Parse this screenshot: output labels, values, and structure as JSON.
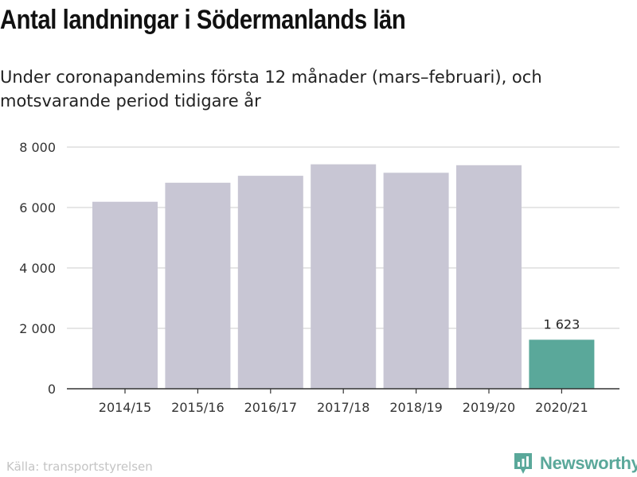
{
  "title": "Antal landningar i Södermanlands län",
  "subtitle": "Under coronapandemins första 12 månader (mars–februari), och motsvarande period tidigare år",
  "source": "Källa: transportstyrelsen",
  "brand": {
    "name": "Newsworthy",
    "icon": "newsworthy-logo-icon",
    "color": "#5aa89a"
  },
  "chart_data": {
    "type": "bar",
    "categories": [
      "2014/15",
      "2015/16",
      "2016/17",
      "2017/18",
      "2018/19",
      "2019/20",
      "2020/21"
    ],
    "values": [
      6190,
      6820,
      7050,
      7430,
      7150,
      7400,
      1623
    ],
    "data_labels": [
      "",
      "",
      "",
      "",
      "",
      "",
      "1 623"
    ],
    "colors": {
      "default": "#c8c6d4",
      "highlight": "#5aa89a"
    },
    "highlight_index": 6,
    "ylim": [
      0,
      8000
    ],
    "yticks": [
      0,
      2000,
      4000,
      6000,
      8000
    ],
    "ytick_labels": [
      "0",
      "2 000",
      "4 000",
      "6 000",
      "8 000"
    ],
    "grid": true,
    "xlabel": "",
    "ylabel": ""
  }
}
